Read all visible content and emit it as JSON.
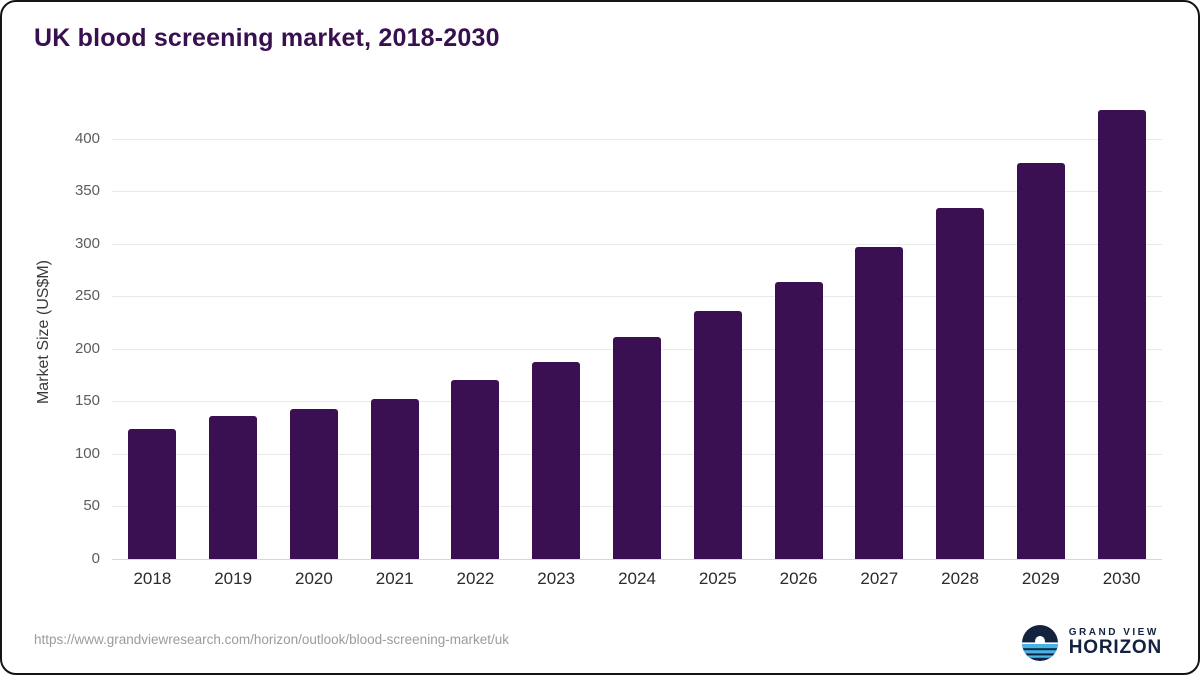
{
  "title": "UK blood screening market, 2018-2030",
  "source_url": "https://www.grandviewresearch.com/horizon/outlook/blood-screening-market/uk",
  "logo": {
    "line1": "GRAND VIEW",
    "line2": "HORIZON"
  },
  "colors": {
    "bar": "#3b1053",
    "title": "#38104f",
    "grid": "#e9e9e9",
    "logo_navy": "#13233f",
    "logo_blue": "#45b5e8"
  },
  "chart_data": {
    "type": "bar",
    "title": "UK blood screening market, 2018-2030",
    "categories": [
      "2018",
      "2019",
      "2020",
      "2021",
      "2022",
      "2023",
      "2024",
      "2025",
      "2026",
      "2027",
      "2028",
      "2029",
      "2030"
    ],
    "values": [
      124,
      136,
      143,
      152,
      170,
      188,
      211,
      236,
      264,
      297,
      334,
      377,
      427
    ],
    "xlabel": "",
    "ylabel": "Market Size (US$M)",
    "ylim": [
      0,
      435
    ],
    "yticks": [
      0,
      50,
      100,
      150,
      200,
      250,
      300,
      350,
      400
    ],
    "grid": true,
    "legend_position": "none",
    "bar_color": "#3b1053"
  }
}
